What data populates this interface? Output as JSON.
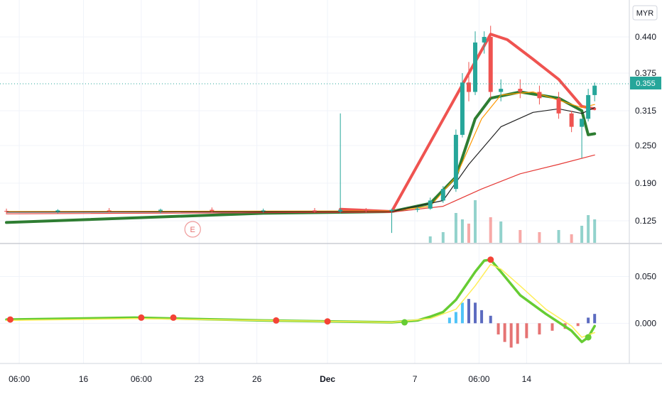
{
  "currency_button": {
    "label": "MYR"
  },
  "price_badge": {
    "label": "0.355",
    "color": "#26a69a"
  },
  "chart_data": [
    {
      "type": "candlestick",
      "panel": "price",
      "currency": "MYR",
      "y_ticks": [
        "0.440",
        "0.375",
        "0.315",
        "0.250",
        "0.190",
        "0.125"
      ],
      "last_price": 0.355,
      "earnings_marker": "E",
      "candles": [
        {
          "t": 0.0,
          "o": 0.142,
          "h": 0.146,
          "l": 0.138,
          "c": 0.141
        },
        {
          "t": 4.0,
          "o": 0.141,
          "h": 0.145,
          "l": 0.138,
          "c": 0.143
        },
        {
          "t": 8.0,
          "o": 0.143,
          "h": 0.147,
          "l": 0.139,
          "c": 0.142
        },
        {
          "t": 12.0,
          "o": 0.142,
          "h": 0.146,
          "l": 0.138,
          "c": 0.144
        },
        {
          "t": 16.0,
          "o": 0.144,
          "h": 0.148,
          "l": 0.14,
          "c": 0.142
        },
        {
          "t": 20.0,
          "o": 0.142,
          "h": 0.146,
          "l": 0.139,
          "c": 0.143
        },
        {
          "t": 24.0,
          "o": 0.143,
          "h": 0.147,
          "l": 0.139,
          "c": 0.141
        },
        {
          "t": 26.0,
          "o": 0.141,
          "h": 0.31,
          "l": 0.138,
          "c": 0.144
        },
        {
          "t": 28.0,
          "o": 0.144,
          "h": 0.147,
          "l": 0.139,
          "c": 0.142
        },
        {
          "t": 30.0,
          "o": 0.142,
          "h": 0.146,
          "l": 0.104,
          "c": 0.144
        },
        {
          "t": 32.0,
          "o": 0.144,
          "h": 0.149,
          "l": 0.14,
          "c": 0.146
        },
        {
          "t": 33.0,
          "o": 0.146,
          "h": 0.165,
          "l": 0.144,
          "c": 0.16
        },
        {
          "t": 34.0,
          "o": 0.16,
          "h": 0.185,
          "l": 0.156,
          "c": 0.18
        },
        {
          "t": 35.0,
          "o": 0.18,
          "h": 0.28,
          "l": 0.175,
          "c": 0.27
        },
        {
          "t": 35.5,
          "o": 0.27,
          "h": 0.375,
          "l": 0.265,
          "c": 0.36
        },
        {
          "t": 36.0,
          "o": 0.36,
          "h": 0.395,
          "l": 0.33,
          "c": 0.345
        },
        {
          "t": 36.5,
          "o": 0.345,
          "h": 0.45,
          "l": 0.34,
          "c": 0.43
        },
        {
          "t": 37.2,
          "o": 0.43,
          "h": 0.45,
          "l": 0.41,
          "c": 0.44
        },
        {
          "t": 37.7,
          "o": 0.44,
          "h": 0.46,
          "l": 0.335,
          "c": 0.345
        },
        {
          "t": 38.5,
          "o": 0.345,
          "h": 0.365,
          "l": 0.33,
          "c": 0.35
        },
        {
          "t": 40.0,
          "o": 0.35,
          "h": 0.365,
          "l": 0.335,
          "c": 0.345
        },
        {
          "t": 41.5,
          "o": 0.345,
          "h": 0.355,
          "l": 0.325,
          "c": 0.335
        },
        {
          "t": 43.0,
          "o": 0.335,
          "h": 0.345,
          "l": 0.3,
          "c": 0.31
        },
        {
          "t": 44.0,
          "o": 0.31,
          "h": 0.315,
          "l": 0.275,
          "c": 0.285
        },
        {
          "t": 44.8,
          "o": 0.285,
          "h": 0.3,
          "l": 0.23,
          "c": 0.3
        },
        {
          "t": 45.3,
          "o": 0.3,
          "h": 0.35,
          "l": 0.295,
          "c": 0.34
        },
        {
          "t": 45.8,
          "o": 0.34,
          "h": 0.36,
          "l": 0.33,
          "c": 0.355
        }
      ],
      "moving_averages": [
        {
          "color": "#2e7d32",
          "points": [
            [
              0,
              0.122
            ],
            [
              20,
              0.138
            ],
            [
              30,
              0.141
            ],
            [
              33,
              0.155
            ],
            [
              35,
              0.2
            ],
            [
              36.5,
              0.3
            ],
            [
              37.7,
              0.335
            ],
            [
              40,
              0.345
            ],
            [
              43,
              0.335
            ],
            [
              44.8,
              0.315
            ],
            [
              45.3,
              0.27
            ],
            [
              45.8,
              0.272
            ]
          ]
        },
        {
          "color": "#ef5350",
          "points": [
            [
              26,
              0.145
            ],
            [
              30,
              0.141
            ],
            [
              37.7,
              0.445
            ],
            [
              39,
              0.435
            ],
            [
              41,
              0.4
            ],
            [
              43,
              0.365
            ],
            [
              44.8,
              0.322
            ],
            [
              45.8,
              0.318
            ]
          ]
        },
        {
          "color": "#ff9800",
          "points": [
            [
              0,
              0.141
            ],
            [
              30,
              0.142
            ],
            [
              33,
              0.15
            ],
            [
              35,
              0.2
            ],
            [
              37,
              0.3
            ],
            [
              38.5,
              0.34
            ],
            [
              41,
              0.345
            ],
            [
              44.8,
              0.32
            ],
            [
              45.8,
              0.325
            ]
          ]
        },
        {
          "color": "#212121",
          "points": [
            [
              0,
              0.14
            ],
            [
              30,
              0.141
            ],
            [
              34,
              0.16
            ],
            [
              36,
              0.22
            ],
            [
              38.5,
              0.285
            ],
            [
              41,
              0.312
            ],
            [
              43,
              0.318
            ],
            [
              44.8,
              0.31
            ],
            [
              45.8,
              0.32
            ]
          ]
        },
        {
          "color": "#e53935",
          "points": [
            [
              0,
              0.137
            ],
            [
              30,
              0.14
            ],
            [
              34,
              0.15
            ],
            [
              37,
              0.18
            ],
            [
              40,
              0.205
            ],
            [
              43,
              0.22
            ],
            [
              45.8,
              0.235
            ]
          ]
        }
      ],
      "volume": [
        {
          "t": 33.0,
          "v": 0.15,
          "up": true
        },
        {
          "t": 34.0,
          "v": 0.25,
          "up": true
        },
        {
          "t": 35.0,
          "v": 0.7,
          "up": true
        },
        {
          "t": 35.5,
          "v": 0.55,
          "up": true
        },
        {
          "t": 36.0,
          "v": 0.45,
          "up": false
        },
        {
          "t": 36.5,
          "v": 1.0,
          "up": true
        },
        {
          "t": 37.7,
          "v": 0.6,
          "up": false
        },
        {
          "t": 38.5,
          "v": 0.5,
          "up": true
        },
        {
          "t": 40.0,
          "v": 0.3,
          "up": false
        },
        {
          "t": 41.5,
          "v": 0.25,
          "up": false
        },
        {
          "t": 43.0,
          "v": 0.3,
          "up": true
        },
        {
          "t": 44.0,
          "v": 0.2,
          "up": false
        },
        {
          "t": 44.8,
          "v": 0.4,
          "up": true
        },
        {
          "t": 45.3,
          "v": 0.65,
          "up": true
        },
        {
          "t": 45.8,
          "v": 0.55,
          "up": true
        }
      ]
    },
    {
      "type": "line",
      "panel": "oscillator",
      "y_ticks": [
        "0.050",
        "0.000"
      ],
      "ylim": [
        -0.04,
        0.08
      ],
      "series": [
        {
          "color": "#66cc33",
          "points": [
            [
              0,
              0.004
            ],
            [
              10,
              0.006
            ],
            [
              20,
              0.003
            ],
            [
              30,
              0.001
            ],
            [
              32,
              0.003
            ],
            [
              33,
              0.007
            ],
            [
              34,
              0.012
            ],
            [
              35,
              0.025
            ],
            [
              36.5,
              0.055
            ],
            [
              37.2,
              0.067
            ],
            [
              37.7,
              0.068
            ],
            [
              38.5,
              0.055
            ],
            [
              40,
              0.03
            ],
            [
              42,
              0.01
            ],
            [
              44,
              -0.008
            ],
            [
              44.8,
              -0.02
            ],
            [
              45.3,
              -0.015
            ],
            [
              45.8,
              -0.003
            ]
          ]
        },
        {
          "color": "#ffee58",
          "points": [
            [
              0,
              0.003
            ],
            [
              10,
              0.005
            ],
            [
              20,
              0.003
            ],
            [
              30,
              0.001
            ],
            [
              33,
              0.005
            ],
            [
              35,
              0.015
            ],
            [
              36.5,
              0.04
            ],
            [
              37.7,
              0.063
            ],
            [
              38.5,
              0.058
            ],
            [
              40,
              0.04
            ],
            [
              42,
              0.015
            ],
            [
              44,
              -0.003
            ],
            [
              44.8,
              -0.015
            ],
            [
              45.8,
              -0.01
            ]
          ]
        }
      ],
      "histogram": [
        {
          "t": 34.5,
          "v": 0.006
        },
        {
          "t": 35.0,
          "v": 0.012
        },
        {
          "t": 35.5,
          "v": 0.022
        },
        {
          "t": 36.0,
          "v": 0.026
        },
        {
          "t": 36.5,
          "v": 0.022
        },
        {
          "t": 37.0,
          "v": 0.014
        },
        {
          "t": 37.7,
          "v": 0.008
        },
        {
          "t": 38.3,
          "v": -0.012
        },
        {
          "t": 38.8,
          "v": -0.02
        },
        {
          "t": 39.3,
          "v": -0.026
        },
        {
          "t": 39.8,
          "v": -0.022
        },
        {
          "t": 40.5,
          "v": -0.016
        },
        {
          "t": 41.5,
          "v": -0.012
        },
        {
          "t": 42.5,
          "v": -0.008
        },
        {
          "t": 43.5,
          "v": -0.006
        },
        {
          "t": 44.5,
          "v": -0.003
        },
        {
          "t": 45.3,
          "v": 0.006
        },
        {
          "t": 45.8,
          "v": 0.01
        }
      ],
      "crossover_points": [
        {
          "t": 0.3,
          "v": 0.004,
          "color": "#f44336"
        },
        {
          "t": 10.5,
          "v": 0.006,
          "color": "#f44336"
        },
        {
          "t": 13.0,
          "v": 0.006,
          "color": "#f44336"
        },
        {
          "t": 21.0,
          "v": 0.003,
          "color": "#f44336"
        },
        {
          "t": 25.0,
          "v": 0.002,
          "color": "#f44336"
        },
        {
          "t": 31.0,
          "v": 0.001,
          "color": "#66cc33"
        },
        {
          "t": 37.7,
          "v": 0.068,
          "color": "#f44336"
        },
        {
          "t": 45.3,
          "v": -0.015,
          "color": "#66cc33"
        }
      ]
    }
  ],
  "time_axis": {
    "labels": [
      "06:00",
      "16",
      "06:00",
      "23",
      "26",
      "Dec",
      "7",
      "06:00",
      "14"
    ]
  },
  "colors": {
    "up": "#26a69a",
    "down": "#ef5350",
    "grid": "#f0f3fa",
    "axis_text": "#131722"
  }
}
